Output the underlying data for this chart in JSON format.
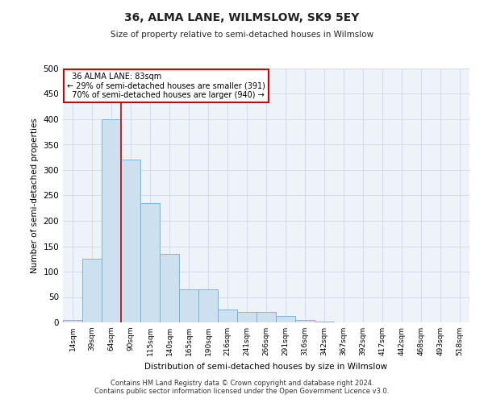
{
  "title": "36, ALMA LANE, WILMSLOW, SK9 5EY",
  "subtitle": "Size of property relative to semi-detached houses in Wilmslow",
  "xlabel": "Distribution of semi-detached houses by size in Wilmslow",
  "ylabel": "Number of semi-detached properties",
  "categories": [
    "14sqm",
    "39sqm",
    "64sqm",
    "90sqm",
    "115sqm",
    "140sqm",
    "165sqm",
    "190sqm",
    "216sqm",
    "241sqm",
    "266sqm",
    "291sqm",
    "316sqm",
    "342sqm",
    "367sqm",
    "392sqm",
    "417sqm",
    "442sqm",
    "468sqm",
    "493sqm",
    "518sqm"
  ],
  "values": [
    5,
    125,
    400,
    320,
    235,
    135,
    65,
    65,
    25,
    20,
    20,
    12,
    5,
    1,
    0,
    0,
    0,
    0,
    0,
    0,
    0
  ],
  "bar_color": "#cce0f0",
  "bar_edge_color": "#6aafd6",
  "property_line_x": 2.5,
  "property_size": "83sqm",
  "pct_smaller": 29,
  "n_smaller": 391,
  "pct_larger": 70,
  "n_larger": 940,
  "annotation_box_color": "#ffffff",
  "annotation_box_edge": "#cc0000",
  "vline_color": "#cc0000",
  "grid_color": "#d0d8e8",
  "background_color": "#eef2f9",
  "ylim": [
    0,
    500
  ],
  "yticks": [
    0,
    50,
    100,
    150,
    200,
    250,
    300,
    350,
    400,
    450,
    500
  ],
  "footer_line1": "Contains HM Land Registry data © Crown copyright and database right 2024.",
  "footer_line2": "Contains public sector information licensed under the Open Government Licence v3.0."
}
